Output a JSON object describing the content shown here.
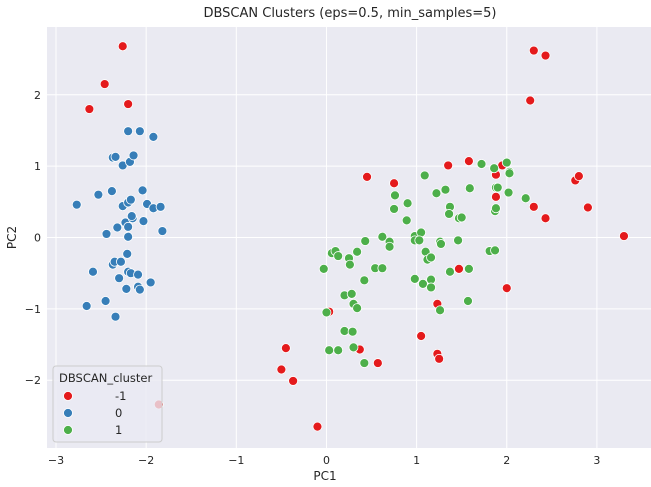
{
  "chart_data": {
    "type": "scatter",
    "title": "DBSCAN Clusters (eps=0.5, min_samples=5)",
    "xlabel": "PC1",
    "ylabel": "PC2",
    "xlim": [
      -3.1,
      3.6
    ],
    "ylim": [
      -2.95,
      2.95
    ],
    "xticks": [
      -3,
      -2,
      -1,
      0,
      1,
      2,
      3
    ],
    "yticks": [
      -2,
      -1,
      0,
      1,
      2
    ],
    "xtick_labels": [
      "−3",
      "−2",
      "−1",
      "0",
      "1",
      "2",
      "3"
    ],
    "ytick_labels": [
      "−2",
      "−1",
      "0",
      "1",
      "2"
    ],
    "grid": true,
    "legend": {
      "title": "DBSCAN_cluster",
      "placement": "lower-left"
    },
    "series": [
      {
        "name": "-1",
        "color": "#e41a1c",
        "points": [
          [
            -2.26,
            2.68
          ],
          [
            -2.46,
            2.15
          ],
          [
            -2.63,
            1.8
          ],
          [
            -2.2,
            1.87
          ],
          [
            -1.86,
            -2.34
          ],
          [
            0.45,
            0.85
          ],
          [
            0.75,
            0.76
          ],
          [
            1.35,
            1.01
          ],
          [
            1.58,
            1.07
          ],
          [
            1.88,
            0.88
          ],
          [
            1.95,
            1.01
          ],
          [
            1.88,
            0.57
          ],
          [
            2.3,
            2.62
          ],
          [
            2.43,
            2.55
          ],
          [
            2.26,
            1.92
          ],
          [
            2.3,
            0.43
          ],
          [
            2.43,
            0.27
          ],
          [
            2.76,
            0.8
          ],
          [
            2.8,
            0.86
          ],
          [
            2.9,
            0.42
          ],
          [
            3.3,
            0.02
          ],
          [
            0.03,
            -1.04
          ],
          [
            -0.45,
            -1.55
          ],
          [
            -0.5,
            -1.85
          ],
          [
            -0.37,
            -2.01
          ],
          [
            -0.1,
            -2.65
          ],
          [
            0.37,
            -1.57
          ],
          [
            0.57,
            -1.76
          ],
          [
            1.05,
            -1.38
          ],
          [
            1.23,
            -1.63
          ],
          [
            1.25,
            -1.7
          ],
          [
            1.23,
            -0.93
          ],
          [
            1.47,
            -0.44
          ],
          [
            2.0,
            -0.71
          ]
        ]
      },
      {
        "name": "0",
        "color": "#377eb8",
        "points": [
          [
            -2.2,
            1.49
          ],
          [
            -2.07,
            1.49
          ],
          [
            -1.92,
            1.41
          ],
          [
            -2.37,
            1.12
          ],
          [
            -2.34,
            1.13
          ],
          [
            -2.26,
            1.01
          ],
          [
            -2.18,
            1.06
          ],
          [
            -2.14,
            1.15
          ],
          [
            -2.53,
            0.6
          ],
          [
            -2.38,
            0.65
          ],
          [
            -2.26,
            0.44
          ],
          [
            -2.2,
            0.49
          ],
          [
            -2.17,
            0.53
          ],
          [
            -2.04,
            0.66
          ],
          [
            -1.99,
            0.47
          ],
          [
            -1.92,
            0.41
          ],
          [
            -1.84,
            0.43
          ],
          [
            -2.77,
            0.46
          ],
          [
            -2.44,
            0.05
          ],
          [
            -2.32,
            0.14
          ],
          [
            -2.23,
            0.21
          ],
          [
            -2.2,
            0.15
          ],
          [
            -2.15,
            0.27
          ],
          [
            -2.16,
            0.3
          ],
          [
            -2.03,
            0.23
          ],
          [
            -1.82,
            0.09
          ],
          [
            -2.2,
            0.01
          ],
          [
            -2.21,
            -0.23
          ],
          [
            -2.59,
            -0.48
          ],
          [
            -2.37,
            -0.38
          ],
          [
            -2.35,
            -0.34
          ],
          [
            -2.28,
            -0.34
          ],
          [
            -2.2,
            -0.48
          ],
          [
            -2.17,
            -0.5
          ],
          [
            -2.3,
            -0.57
          ],
          [
            -2.09,
            -0.52
          ],
          [
            -1.95,
            -0.63
          ],
          [
            -2.09,
            -0.69
          ],
          [
            -2.22,
            -0.72
          ],
          [
            -2.07,
            -0.73
          ],
          [
            -2.66,
            -0.96
          ],
          [
            -2.45,
            -0.89
          ],
          [
            -2.34,
            -1.11
          ]
        ]
      },
      {
        "name": "1",
        "color": "#4daf4a",
        "points": [
          [
            0.76,
            0.59
          ],
          [
            0.75,
            0.4
          ],
          [
            0.89,
            0.24
          ],
          [
            0.9,
            0.48
          ],
          [
            0.98,
            0.02
          ],
          [
            1.05,
            0.07
          ],
          [
            1.09,
            0.87
          ],
          [
            1.22,
            0.62
          ],
          [
            1.32,
            0.67
          ],
          [
            1.37,
            0.43
          ],
          [
            1.36,
            0.33
          ],
          [
            1.47,
            0.27
          ],
          [
            1.5,
            0.28
          ],
          [
            1.59,
            0.69
          ],
          [
            1.72,
            1.03
          ],
          [
            1.86,
            0.97
          ],
          [
            1.88,
            0.7
          ],
          [
            1.9,
            0.7
          ],
          [
            2.0,
            1.05
          ],
          [
            2.03,
            0.92
          ],
          [
            2.03,
            0.9
          ],
          [
            2.02,
            0.63
          ],
          [
            2.21,
            0.55
          ],
          [
            1.87,
            0.37
          ],
          [
            1.88,
            0.41
          ],
          [
            1.81,
            -0.19
          ],
          [
            1.87,
            -0.18
          ],
          [
            0.06,
            -0.22
          ],
          [
            0.1,
            -0.19
          ],
          [
            0.13,
            -0.26
          ],
          [
            0.25,
            -0.29
          ],
          [
            0.26,
            -0.38
          ],
          [
            0.34,
            -0.2
          ],
          [
            0.43,
            -0.05
          ],
          [
            0.54,
            -0.43
          ],
          [
            0.62,
            -0.43
          ],
          [
            0.62,
            0.01
          ],
          [
            0.7,
            -0.06
          ],
          [
            0.7,
            -0.13
          ],
          [
            0.98,
            -0.04
          ],
          [
            1.03,
            -0.04
          ],
          [
            1.1,
            -0.2
          ],
          [
            1.12,
            -0.31
          ],
          [
            1.16,
            -0.28
          ],
          [
            1.26,
            -0.06
          ],
          [
            1.27,
            -0.09
          ],
          [
            1.46,
            -0.04
          ],
          [
            1.37,
            -0.48
          ],
          [
            1.58,
            -0.44
          ],
          [
            1.16,
            -0.59
          ],
          [
            1.07,
            -0.65
          ],
          [
            0.98,
            -0.58
          ],
          [
            1.16,
            -0.7
          ],
          [
            1.26,
            -1.02
          ],
          [
            1.57,
            -0.89
          ],
          [
            -0.03,
            -0.44
          ],
          [
            0.2,
            -0.81
          ],
          [
            0.28,
            -0.79
          ],
          [
            0.3,
            -0.93
          ],
          [
            0.34,
            -0.99
          ],
          [
            0.42,
            -0.6
          ],
          [
            0.0,
            -1.05
          ],
          [
            0.2,
            -1.31
          ],
          [
            0.29,
            -1.32
          ],
          [
            0.3,
            -1.54
          ],
          [
            0.13,
            -1.58
          ],
          [
            0.03,
            -1.58
          ],
          [
            0.42,
            -1.76
          ]
        ]
      }
    ]
  }
}
